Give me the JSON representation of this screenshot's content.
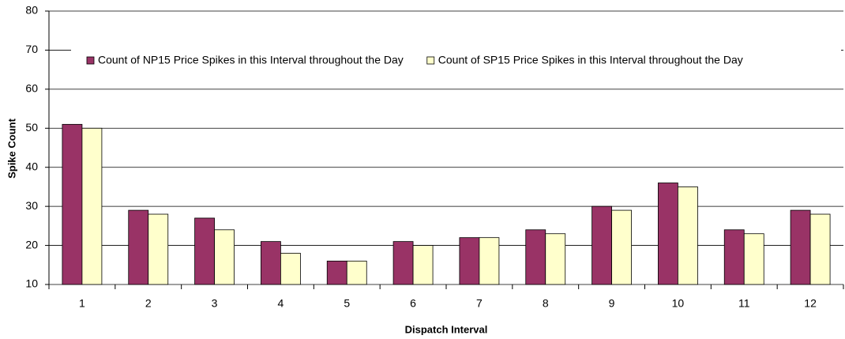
{
  "chart_data": {
    "type": "bar",
    "x_label": "Dispatch Interval",
    "y_label": "Spike Count",
    "categories": [
      "1",
      "2",
      "3",
      "4",
      "5",
      "6",
      "7",
      "8",
      "9",
      "10",
      "11",
      "12"
    ],
    "series": [
      {
        "name": "Count of NP15 Price Spikes in this Interval throughout the Day",
        "color": "#993366",
        "values": [
          51,
          29,
          27,
          21,
          16,
          21,
          22,
          24,
          30,
          36,
          24,
          29
        ]
      },
      {
        "name": "Count of SP15 Price Spikes in this Interval throughout the Day",
        "color": "#ffffcc",
        "values": [
          50,
          28,
          24,
          18,
          16,
          20,
          22,
          23,
          29,
          35,
          23,
          28
        ]
      }
    ],
    "ylim": [
      10,
      80
    ],
    "yticks": [
      10,
      20,
      30,
      40,
      50,
      60,
      70,
      80
    ],
    "grid": true
  }
}
